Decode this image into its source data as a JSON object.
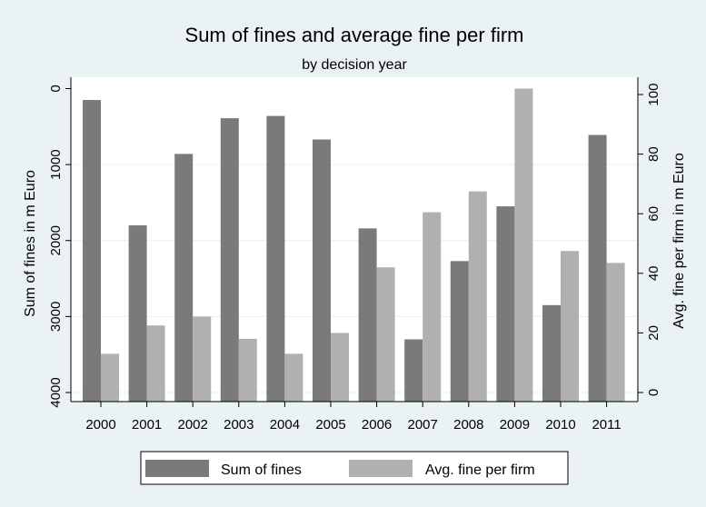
{
  "chart_data": {
    "type": "bar",
    "title": "Sum of fines and average fine per firm",
    "subtitle": "by decision year",
    "ylabel_left": "Sum of fines in m Euro",
    "ylabel_right": "Avg. fine per firm in m Euro",
    "ylim_left": [
      0,
      4000
    ],
    "ylim_right": [
      0,
      102
    ],
    "yticks_left": [
      "0",
      "1000",
      "2000",
      "3000",
      "4000"
    ],
    "yticks_right": [
      "0",
      "20",
      "40",
      "60",
      "80",
      "100"
    ],
    "categories": [
      "2000",
      "2001",
      "2002",
      "2003",
      "2004",
      "2005",
      "2006",
      "2007",
      "2008",
      "2009",
      "2010",
      "2011"
    ],
    "series": [
      {
        "name": "Sum of fines",
        "axis": "left",
        "color": "#7a7a7a",
        "values": [
          150,
          1800,
          860,
          390,
          360,
          670,
          1840,
          3300,
          2270,
          1550,
          2850,
          610
        ]
      },
      {
        "name": "Avg. fine per firm",
        "axis": "right",
        "color": "#b0b0b0",
        "values": [
          13,
          22.5,
          25.5,
          18,
          13,
          20,
          42,
          60.5,
          67.5,
          102,
          47.5,
          43.5
        ]
      }
    ],
    "grid": true,
    "legend_position": "bottom"
  }
}
